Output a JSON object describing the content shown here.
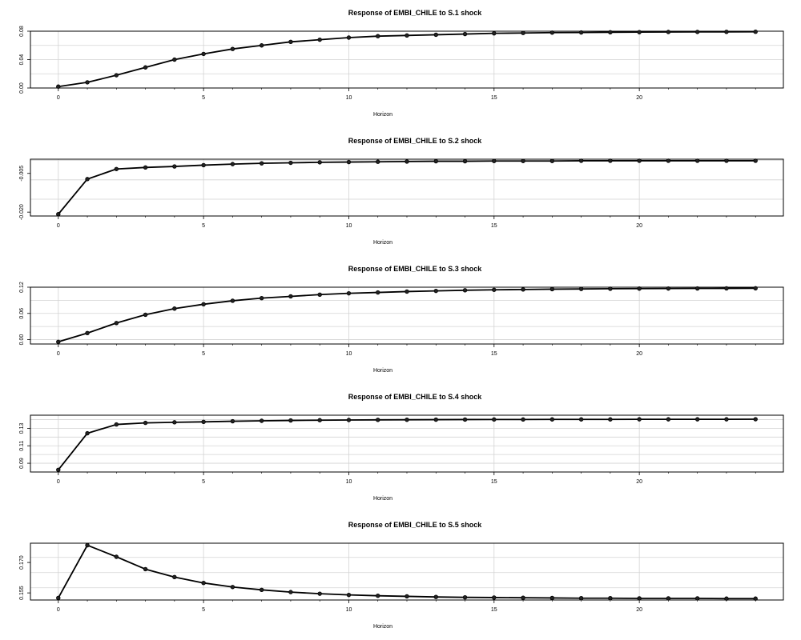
{
  "chart_data": [
    {
      "type": "line",
      "title": "Response of EMBI_CHILE to S.1 shock",
      "xlabel": "Horizon",
      "ylabel": "",
      "grid": true,
      "line_color": "#000000",
      "grid_color": "#d3d3d3",
      "xlim": [
        0,
        24
      ],
      "ylim": [
        0.0,
        0.08
      ],
      "xticks": [
        0,
        5,
        10,
        15,
        20
      ],
      "xtick_labels": [
        "0",
        "5",
        "10",
        "15",
        "20"
      ],
      "yticks": [
        0.0,
        0.04,
        0.08
      ],
      "ytick_labels": [
        "0.00",
        "0.04",
        "0.08"
      ],
      "x": [
        0,
        1,
        2,
        3,
        4,
        5,
        6,
        7,
        8,
        9,
        10,
        11,
        12,
        13,
        14,
        15,
        16,
        17,
        18,
        19,
        20,
        21,
        22,
        23,
        24
      ],
      "values": [
        0.002,
        0.008,
        0.018,
        0.029,
        0.04,
        0.048,
        0.055,
        0.06,
        0.065,
        0.068,
        0.071,
        0.073,
        0.074,
        0.075,
        0.076,
        0.077,
        0.0775,
        0.078,
        0.0782,
        0.0785,
        0.0787,
        0.0789,
        0.079,
        0.0791,
        0.0792
      ]
    },
    {
      "type": "line",
      "title": "Response of EMBI_CHILE to S.2 shock",
      "xlabel": "Horizon",
      "ylabel": "",
      "grid": true,
      "line_color": "#000000",
      "grid_color": "#d3d3d3",
      "xlim": [
        0,
        24
      ],
      "ylim": [
        -0.0215,
        0.0005
      ],
      "xticks": [
        0,
        5,
        10,
        15,
        20
      ],
      "xtick_labels": [
        "0",
        "5",
        "10",
        "15",
        "20"
      ],
      "yticks": [
        -0.02,
        -0.005
      ],
      "ytick_labels": [
        "-0.020",
        "-0.005"
      ],
      "x": [
        0,
        1,
        2,
        3,
        4,
        5,
        6,
        7,
        8,
        9,
        10,
        11,
        12,
        13,
        14,
        15,
        16,
        17,
        18,
        19,
        20,
        21,
        22,
        23,
        24
      ],
      "values": [
        -0.0208,
        -0.0072,
        -0.0033,
        -0.0027,
        -0.0023,
        -0.0018,
        -0.0014,
        -0.0011,
        -0.0009,
        -0.0007,
        -0.0006,
        -0.0005,
        -0.0004,
        -0.0003,
        -0.0003,
        -0.0002,
        -0.0002,
        -0.0002,
        -0.0001,
        -0.0001,
        -0.0001,
        -0.0001,
        -0.0001,
        -0.0001,
        -0.0001
      ]
    },
    {
      "type": "line",
      "title": "Response of EMBI_CHILE to S.3 shock",
      "xlabel": "Horizon",
      "ylabel": "",
      "grid": true,
      "line_color": "#000000",
      "grid_color": "#d3d3d3",
      "xlim": [
        0,
        24
      ],
      "ylim": [
        -0.01,
        0.12
      ],
      "xticks": [
        0,
        5,
        10,
        15,
        20
      ],
      "xtick_labels": [
        "0",
        "5",
        "10",
        "15",
        "20"
      ],
      "yticks": [
        0.0,
        0.06,
        0.12
      ],
      "ytick_labels": [
        "0.00",
        "0.06",
        "0.12"
      ],
      "x": [
        0,
        1,
        2,
        3,
        4,
        5,
        6,
        7,
        8,
        9,
        10,
        11,
        12,
        13,
        14,
        15,
        16,
        17,
        18,
        19,
        20,
        21,
        22,
        23,
        24
      ],
      "values": [
        -0.005,
        0.015,
        0.038,
        0.057,
        0.071,
        0.081,
        0.089,
        0.095,
        0.099,
        0.103,
        0.106,
        0.108,
        0.11,
        0.1115,
        0.113,
        0.114,
        0.1148,
        0.1155,
        0.116,
        0.1165,
        0.1168,
        0.117,
        0.1172,
        0.1174,
        0.1175
      ]
    },
    {
      "type": "line",
      "title": "Response of EMBI_CHILE to S.4 shock",
      "xlabel": "Horizon",
      "ylabel": "",
      "grid": true,
      "line_color": "#000000",
      "grid_color": "#d3d3d3",
      "xlim": [
        0,
        24
      ],
      "ylim": [
        0.08,
        0.145
      ],
      "xticks": [
        0,
        5,
        10,
        15,
        20
      ],
      "xtick_labels": [
        "0",
        "5",
        "10",
        "15",
        "20"
      ],
      "yticks": [
        0.09,
        0.11,
        0.13
      ],
      "ytick_labels": [
        "0.09",
        "0.11",
        "0.13"
      ],
      "x": [
        0,
        1,
        2,
        3,
        4,
        5,
        6,
        7,
        8,
        9,
        10,
        11,
        12,
        13,
        14,
        15,
        16,
        17,
        18,
        19,
        20,
        21,
        22,
        23,
        24
      ],
      "values": [
        0.0825,
        0.1243,
        0.1344,
        0.1362,
        0.1369,
        0.1374,
        0.1381,
        0.1386,
        0.139,
        0.1393,
        0.1395,
        0.1397,
        0.1398,
        0.1399,
        0.14,
        0.1401,
        0.1401,
        0.1402,
        0.1402,
        0.1402,
        0.1403,
        0.1403,
        0.1403,
        0.1403,
        0.1404
      ]
    },
    {
      "type": "line",
      "title": "Response of EMBI_CHILE to S.5 shock",
      "xlabel": "Horizon",
      "ylabel": "",
      "grid": true,
      "line_color": "#000000",
      "grid_color": "#d3d3d3",
      "xlim": [
        0,
        24
      ],
      "ylim": [
        0.1515,
        0.1795
      ],
      "xticks": [
        0,
        5,
        10,
        15,
        20
      ],
      "xtick_labels": [
        "0",
        "5",
        "10",
        "15",
        "20"
      ],
      "yticks": [
        0.155,
        0.17
      ],
      "ytick_labels": [
        "0.155",
        "0.170"
      ],
      "x": [
        0,
        1,
        2,
        3,
        4,
        5,
        6,
        7,
        8,
        9,
        10,
        11,
        12,
        13,
        14,
        15,
        16,
        17,
        18,
        19,
        20,
        21,
        22,
        23,
        24
      ],
      "values": [
        0.1525,
        0.1785,
        0.1728,
        0.1667,
        0.1628,
        0.1599,
        0.1579,
        0.1565,
        0.1554,
        0.1546,
        0.154,
        0.1536,
        0.1533,
        0.153,
        0.1528,
        0.1527,
        0.1526,
        0.1525,
        0.1524,
        0.1524,
        0.1523,
        0.1523,
        0.1523,
        0.1522,
        0.1522
      ]
    }
  ]
}
